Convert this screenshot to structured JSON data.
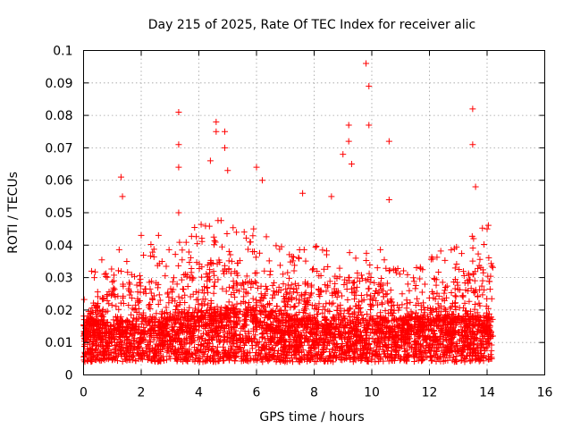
{
  "chart_data": {
    "type": "scatter",
    "title": "Day 215 of 2025, Rate Of TEC Index for receiver alic",
    "xlabel": "GPS time / hours",
    "ylabel": "ROTI / TECUs",
    "xlim": [
      0,
      16
    ],
    "ylim": [
      0,
      0.1
    ],
    "x_ticks": [
      "0",
      "2",
      "4",
      "6",
      "8",
      "10",
      "12",
      "14",
      "16"
    ],
    "y_ticks": [
      "0",
      "0.01",
      "0.02",
      "0.03",
      "0.04",
      "0.05",
      "0.06",
      "0.07",
      "0.08",
      "0.09",
      "0.1"
    ],
    "grid": true,
    "marker": "+",
    "color": "#ff0000",
    "data_range_x": [
      0,
      14.2
    ],
    "notable_points": [
      {
        "x": 0.0,
        "y": 0.012
      },
      {
        "x": 0.5,
        "y": 0.022
      },
      {
        "x": 1.0,
        "y": 0.025
      },
      {
        "x": 1.3,
        "y": 0.061
      },
      {
        "x": 1.35,
        "y": 0.055
      },
      {
        "x": 1.5,
        "y": 0.035
      },
      {
        "x": 2.0,
        "y": 0.043
      },
      {
        "x": 2.6,
        "y": 0.043
      },
      {
        "x": 3.3,
        "y": 0.081
      },
      {
        "x": 3.3,
        "y": 0.071
      },
      {
        "x": 3.3,
        "y": 0.064
      },
      {
        "x": 3.3,
        "y": 0.05
      },
      {
        "x": 4.4,
        "y": 0.066
      },
      {
        "x": 4.6,
        "y": 0.078
      },
      {
        "x": 4.6,
        "y": 0.075
      },
      {
        "x": 4.9,
        "y": 0.075
      },
      {
        "x": 4.9,
        "y": 0.07
      },
      {
        "x": 5.0,
        "y": 0.063
      },
      {
        "x": 6.0,
        "y": 0.064
      },
      {
        "x": 6.2,
        "y": 0.06
      },
      {
        "x": 7.6,
        "y": 0.056
      },
      {
        "x": 8.6,
        "y": 0.055
      },
      {
        "x": 9.0,
        "y": 0.068
      },
      {
        "x": 9.2,
        "y": 0.077
      },
      {
        "x": 9.2,
        "y": 0.072
      },
      {
        "x": 9.3,
        "y": 0.065
      },
      {
        "x": 9.8,
        "y": 0.096
      },
      {
        "x": 9.9,
        "y": 0.089
      },
      {
        "x": 9.9,
        "y": 0.077
      },
      {
        "x": 10.6,
        "y": 0.072
      },
      {
        "x": 10.6,
        "y": 0.054
      },
      {
        "x": 13.5,
        "y": 0.082
      },
      {
        "x": 13.5,
        "y": 0.071
      },
      {
        "x": 13.6,
        "y": 0.058
      },
      {
        "x": 14.0,
        "y": 0.045
      },
      {
        "x": 14.2,
        "y": 0.012
      }
    ],
    "density_profile": [
      {
        "x": 0.0,
        "base": 0.011,
        "upper": 0.018
      },
      {
        "x": 1.0,
        "base": 0.011,
        "upper": 0.027
      },
      {
        "x": 2.0,
        "base": 0.012,
        "upper": 0.03
      },
      {
        "x": 3.0,
        "base": 0.012,
        "upper": 0.027
      },
      {
        "x": 4.0,
        "base": 0.014,
        "upper": 0.035
      },
      {
        "x": 5.0,
        "base": 0.015,
        "upper": 0.036
      },
      {
        "x": 6.0,
        "base": 0.014,
        "upper": 0.034
      },
      {
        "x": 7.0,
        "base": 0.013,
        "upper": 0.028
      },
      {
        "x": 8.0,
        "base": 0.012,
        "upper": 0.028
      },
      {
        "x": 9.0,
        "base": 0.012,
        "upper": 0.031
      },
      {
        "x": 10.0,
        "base": 0.012,
        "upper": 0.03
      },
      {
        "x": 11.0,
        "base": 0.012,
        "upper": 0.022
      },
      {
        "x": 12.0,
        "base": 0.012,
        "upper": 0.024
      },
      {
        "x": 13.0,
        "base": 0.013,
        "upper": 0.03
      },
      {
        "x": 14.0,
        "base": 0.012,
        "upper": 0.035
      }
    ]
  }
}
